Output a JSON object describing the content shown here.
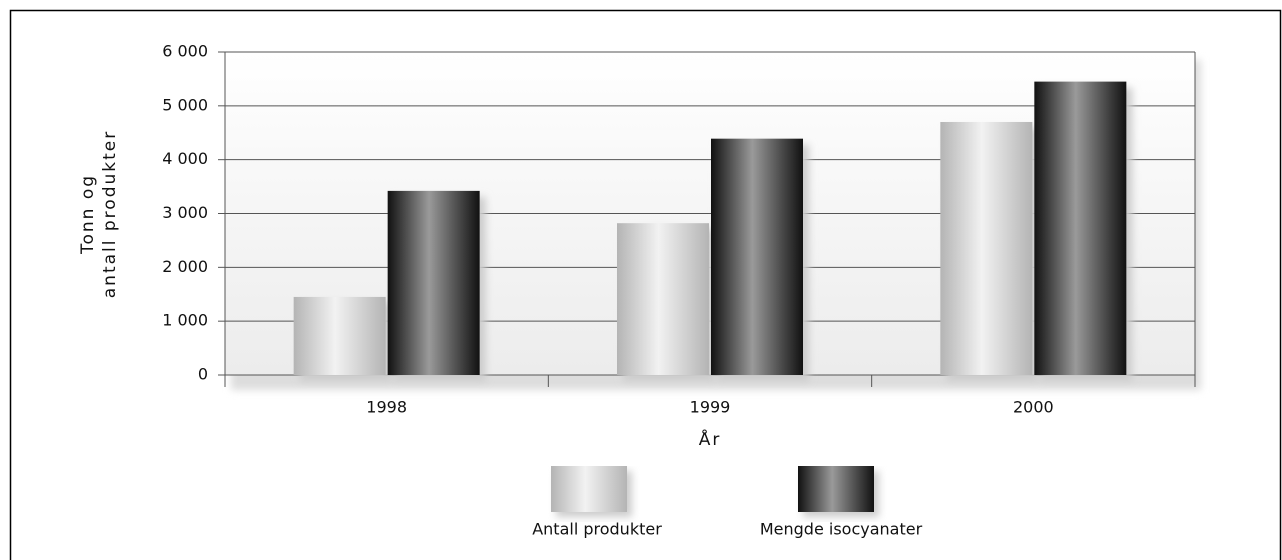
{
  "chart_data": {
    "type": "bar",
    "y_label": [
      "Tonn og",
      "antall produkter"
    ],
    "x_label": "År",
    "categories": [
      "1998",
      "1999",
      "2000"
    ],
    "series": [
      {
        "name": "Antall produkter",
        "color": "#b4b4b4",
        "values": [
          1450,
          2820,
          4700
        ]
      },
      {
        "name": "Mengde isocyanater",
        "color": "#111111",
        "values": [
          3420,
          4390,
          5450
        ]
      }
    ],
    "ylim": [
      0,
      6000
    ],
    "yticks": [
      0,
      {
        "value": 1000,
        "label": "1 000"
      },
      {
        "value": 2000,
        "label": "2 000"
      },
      {
        "value": 3000,
        "label": "3 000"
      },
      {
        "value": 4000,
        "label": "4 000"
      },
      {
        "value": 5000,
        "label": "5 000"
      },
      {
        "value": 6000,
        "label": "6 000"
      }
    ],
    "grid": true,
    "legend": "bottom"
  }
}
